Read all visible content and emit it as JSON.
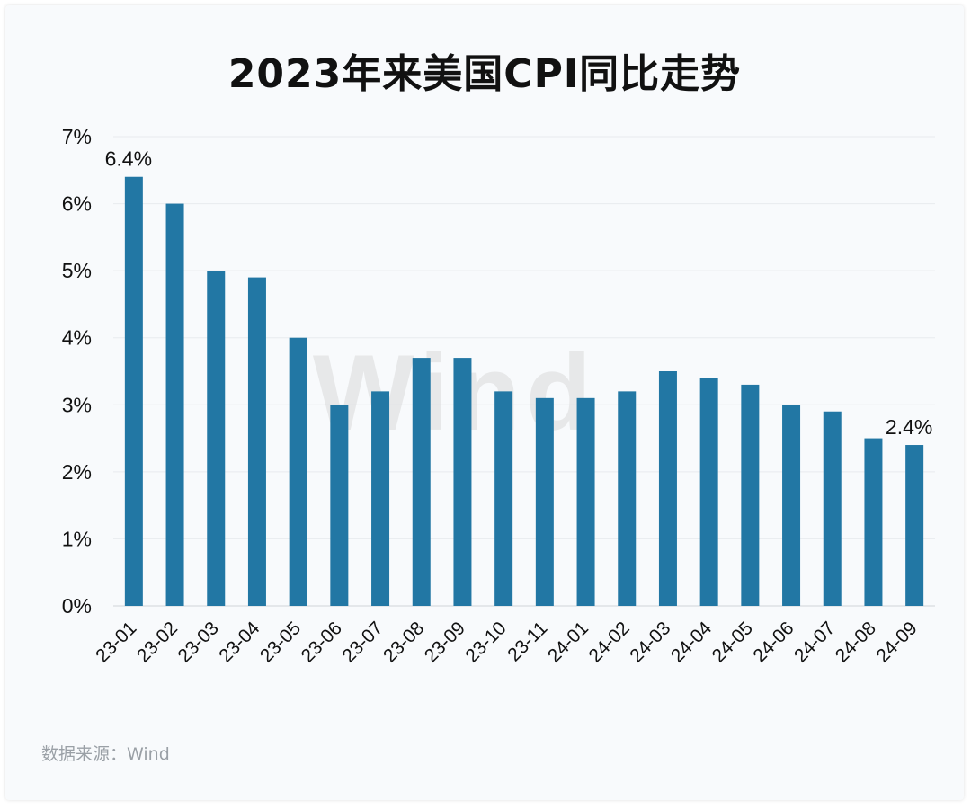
{
  "title": "2023年来美国CPI同比走势",
  "source": "数据来源：Wind",
  "watermark": "Wind",
  "colors": {
    "bar": "#2277a4",
    "grid": "#e8ebee",
    "text": "#111111",
    "watermark": "#d9d9d9"
  },
  "chart_data": {
    "type": "bar",
    "title": "2023年来美国CPI同比走势",
    "xlabel": "",
    "ylabel": "",
    "categories": [
      "23-01",
      "23-02",
      "23-03",
      "23-04",
      "23-05",
      "23-06",
      "23-07",
      "23-08",
      "23-09",
      "23-10",
      "23-11",
      "24-01",
      "24-02",
      "24-03",
      "24-04",
      "24-05",
      "24-06",
      "24-07",
      "24-08",
      "24-09"
    ],
    "values": [
      6.4,
      6.0,
      5.0,
      4.9,
      4.0,
      3.0,
      3.2,
      3.7,
      3.7,
      3.2,
      3.1,
      3.1,
      3.2,
      3.5,
      3.4,
      3.3,
      3.0,
      2.9,
      2.5,
      2.4
    ],
    "ylim": [
      0,
      7
    ],
    "yticks": [
      "0%",
      "1%",
      "2%",
      "3%",
      "4%",
      "5%",
      "6%",
      "7%"
    ],
    "data_labels": [
      {
        "index": 0,
        "text": "6.4%"
      },
      {
        "index": 19,
        "text": "2.4%"
      }
    ],
    "grid": true,
    "legend": "none"
  }
}
